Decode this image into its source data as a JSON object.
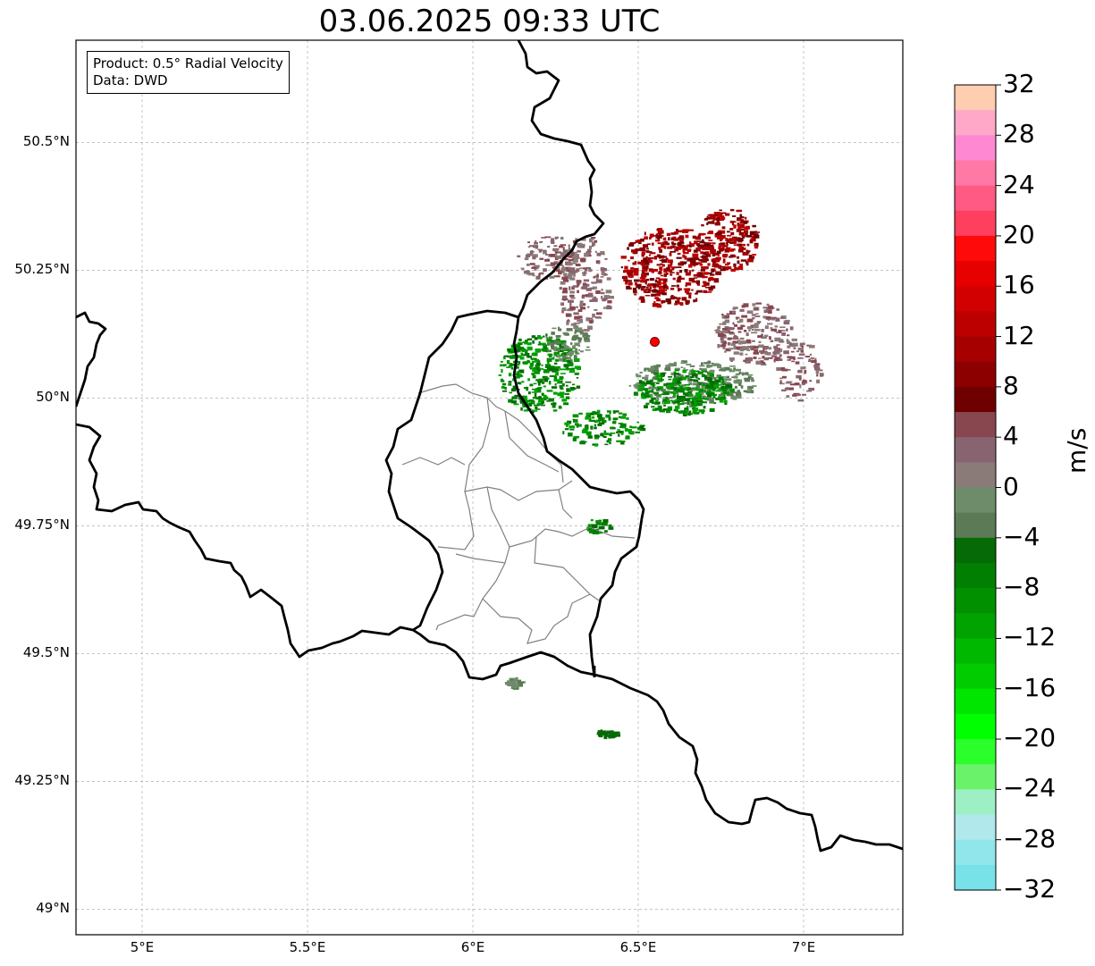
{
  "title": "03.06.2025 09:33 UTC",
  "info": {
    "product": "Product: 0.5° Radial Velocity",
    "source": "Data: DWD"
  },
  "axes": {
    "lat_ticks": [
      "50.5°N",
      "50.25°N",
      "50°N",
      "49.75°N",
      "49.5°N",
      "49.25°N",
      "49°N"
    ],
    "lon_ticks": [
      "5°E",
      "5.5°E",
      "6°E",
      "6.5°E",
      "7°E"
    ],
    "lat_range": [
      48.95,
      50.7
    ],
    "lon_range": [
      4.8,
      7.3
    ]
  },
  "radar_site": {
    "lat": 50.11,
    "lon": 6.55,
    "color": "#ff0000"
  },
  "colorbar": {
    "label": "m/s",
    "ticks": [
      "32",
      "28",
      "24",
      "20",
      "16",
      "12",
      "8",
      "4",
      "0",
      "−4",
      "−8",
      "−12",
      "−16",
      "−20",
      "−24",
      "−28",
      "−32"
    ],
    "range": [
      -32,
      32
    ],
    "colors_top_to_bottom": [
      "#ffcdb0",
      "#ffa8c8",
      "#ff88d2",
      "#ff78a6",
      "#ff5a84",
      "#ff3f5e",
      "#ff0a0a",
      "#e60000",
      "#d20000",
      "#bc0000",
      "#a70000",
      "#8c0000",
      "#6e0000",
      "#88474f",
      "#886470",
      "#8a7a78",
      "#6e8c6a",
      "#5b7a55",
      "#066a06",
      "#007f00",
      "#009000",
      "#00a300",
      "#00b800",
      "#00cc00",
      "#00e600",
      "#00ff00",
      "#2bff2b",
      "#6af26a",
      "#9cf0c4",
      "#b0e8ec",
      "#90e6ea",
      "#78e2e8"
    ]
  },
  "gridlines": true
}
